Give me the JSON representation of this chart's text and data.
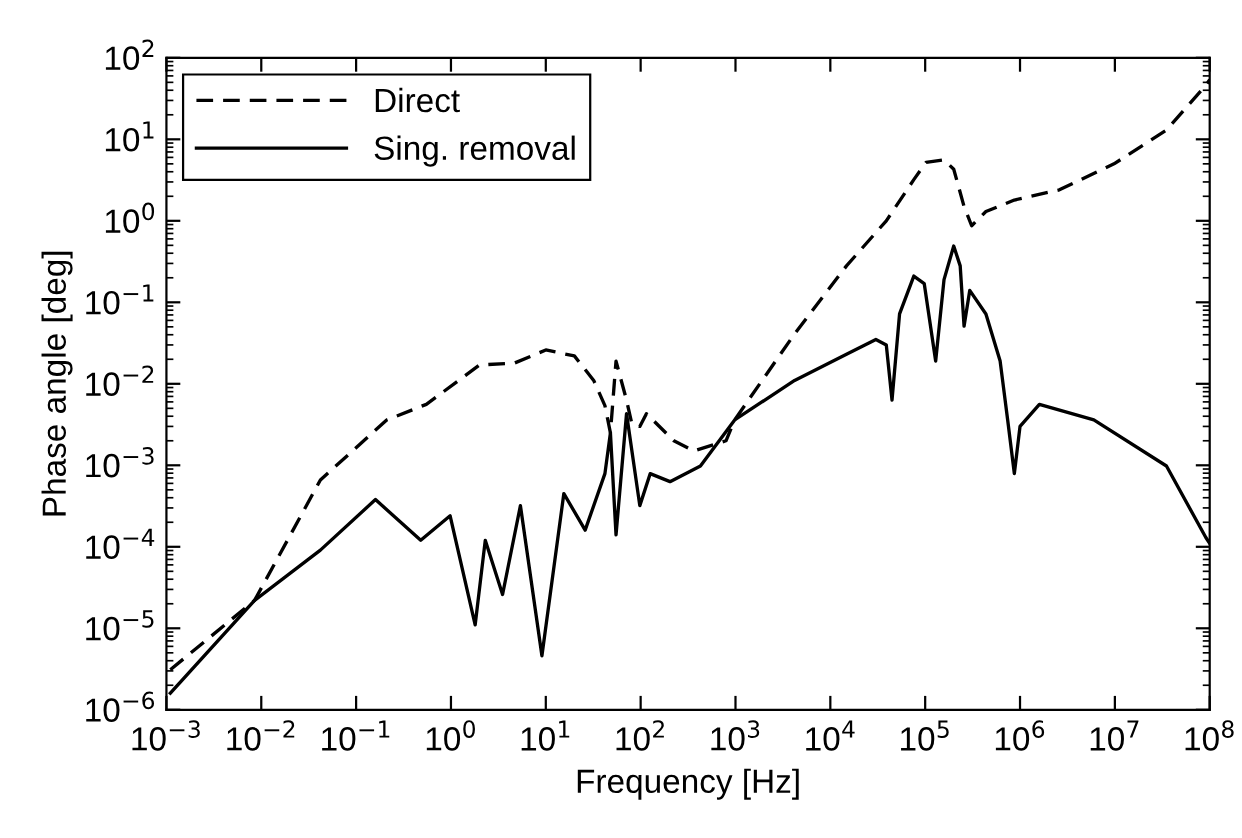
{
  "chart_data": {
    "type": "line",
    "xlabel": "Frequency [Hz]",
    "ylabel": "Phase angle [deg]",
    "log": "xy",
    "grid": false,
    "legend": "top left",
    "xlim": [
      0.001,
      100000000
    ],
    "ylim": [
      1e-06,
      100
    ],
    "xticks": [
      {
        "value": 0.001,
        "label": "10$^{−3}$"
      },
      {
        "value": 0.01,
        "label": "10$^{−2}$"
      },
      {
        "value": 0.1,
        "label": "10$^{−1}$"
      },
      {
        "value": 1,
        "label": "10$^{0}$"
      },
      {
        "value": 10,
        "label": "10$^{1}$"
      },
      {
        "value": 100,
        "label": "10$^{2}$"
      },
      {
        "value": 1000,
        "label": "10$^{3}$"
      },
      {
        "value": 10000,
        "label": "10$^{4}$"
      },
      {
        "value": 100000,
        "label": "10$^{5}$"
      },
      {
        "value": 1000000,
        "label": "10$^{6}$"
      },
      {
        "value": 10000000,
        "label": "10$^{7}$"
      },
      {
        "value": 100000000,
        "label": "10$^{8}$"
      }
    ],
    "yticks": [
      {
        "value": 1e-06,
        "label": "10$^{−6}$"
      },
      {
        "value": 1e-05,
        "label": "10$^{−5}$"
      },
      {
        "value": 0.0001,
        "label": "10$^{−4}$"
      },
      {
        "value": 0.001,
        "label": "10$^{−3}$"
      },
      {
        "value": 0.01,
        "label": "10$^{−2}$"
      },
      {
        "value": 0.1,
        "label": "10$^{−1}$"
      },
      {
        "value": 1,
        "label": "10$^{0}$"
      },
      {
        "value": 10,
        "label": "10$^{1}$"
      },
      {
        "value": 100,
        "label": "10$^{2}$"
      }
    ],
    "series": [
      {
        "name": "Direct",
        "color": "#000000",
        "line_style": "dashed",
        "x": [
          0.0011,
          0.0085,
          0.042,
          0.21,
          0.55,
          2.0,
          4.7,
          10,
          20,
          32,
          42,
          48,
          55,
          71,
          81,
          98,
          115,
          224,
          363,
          794,
          980,
          4200,
          14800,
          38900,
          75900,
          102000,
          158000,
          200000,
          257000,
          309000,
          437000,
          871000,
          2600000.0,
          9800000.0,
          35000000.0,
          91000000.0,
          100000000.0
        ],
        "values": [
          3.1e-06,
          2.2e-05,
          0.00066,
          0.0036,
          0.0056,
          0.017,
          0.018,
          0.026,
          0.022,
          0.011,
          0.0054,
          0.0025,
          0.019,
          0.0063,
          0.0032,
          0.003,
          0.0043,
          0.002,
          0.0015,
          0.002,
          0.0036,
          0.041,
          0.28,
          1.0,
          3.2,
          5.2,
          5.6,
          4.3,
          1.5,
          0.87,
          1.3,
          1.8,
          2.4,
          5.0,
          13,
          46,
          54
        ]
      },
      {
        "name": "Sing. removal",
        "color": "#000000",
        "line_style": "solid",
        "x": [
          0.0011,
          0.0085,
          0.042,
          0.16,
          0.48,
          0.98,
          1.8,
          2.3,
          3.5,
          5.4,
          9.1,
          15.5,
          26,
          42,
          48,
          55,
          71,
          98,
          126,
          204,
          427,
          980,
          4200,
          14800,
          30200,
          38900,
          44700,
          53700,
          75900,
          97700,
          129000,
          158000,
          200000,
          234000,
          257000,
          295000,
          437000,
          617000,
          741000,
          871000,
          1000000.0,
          1600000.0,
          6000000.0,
          35000000.0,
          91000000.0,
          100000000.0
        ],
        "values": [
          1.6e-06,
          2.2e-05,
          9.1e-05,
          0.00038,
          0.00012,
          0.00024,
          1.1e-05,
          0.00012,
          2.6e-05,
          0.00032,
          4.6e-06,
          0.00045,
          0.00016,
          0.00079,
          0.0025,
          0.00014,
          0.0043,
          0.00032,
          0.00079,
          0.00063,
          0.00098,
          0.0036,
          0.011,
          0.023,
          0.035,
          0.03,
          0.0063,
          0.072,
          0.21,
          0.17,
          0.019,
          0.19,
          0.49,
          0.28,
          0.051,
          0.14,
          0.072,
          0.019,
          0.0036,
          0.00079,
          0.003,
          0.0056,
          0.0036,
          0.00098,
          0.00013,
          0.00011
        ]
      }
    ]
  }
}
